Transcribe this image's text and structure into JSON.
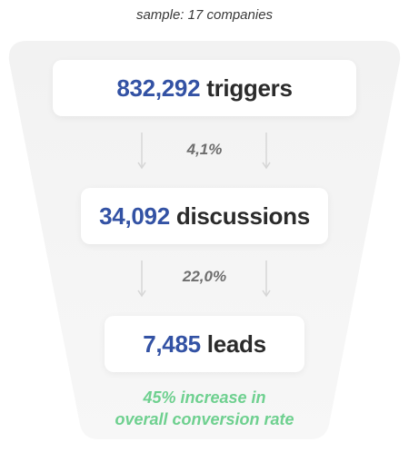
{
  "caption": "sample: 17 companies",
  "stages": [
    {
      "value": "832,292",
      "label": "triggers"
    },
    {
      "value": "34,092",
      "label": "discussions"
    },
    {
      "value": "7,485",
      "label": "leads"
    }
  ],
  "rates": [
    "4,1%",
    "22,0%"
  ],
  "result": {
    "line1": "45% increase in",
    "line2": "overall conversion rate"
  },
  "colors": {
    "value": "#3352a4",
    "label": "#2b2b2b",
    "result": "#6ed08f",
    "funnel": "#f3f3f3"
  },
  "icons": [
    "down-arrow-icon"
  ]
}
